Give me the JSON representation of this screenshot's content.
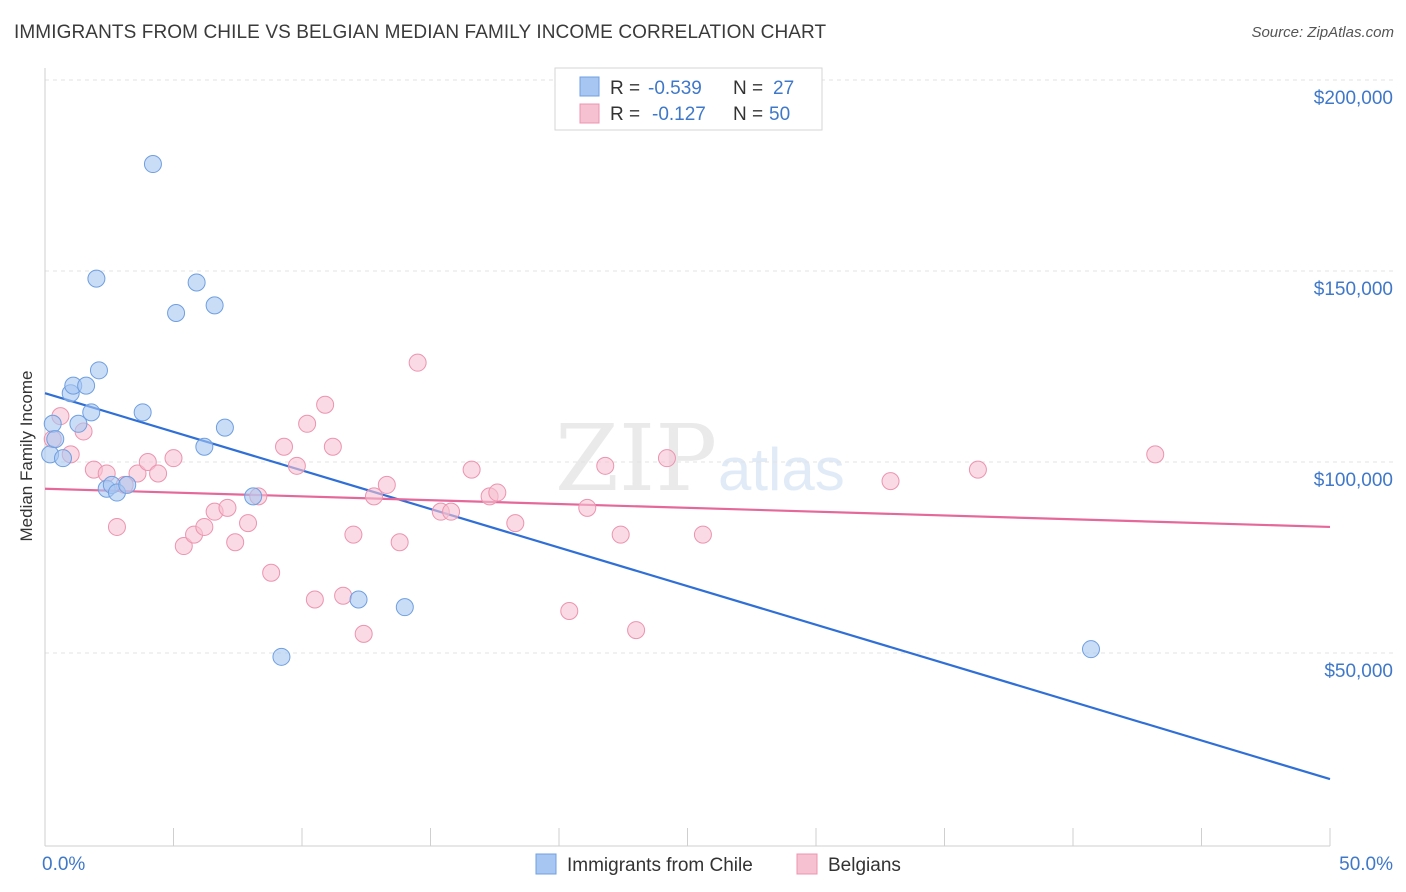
{
  "header": {
    "title": "IMMIGRANTS FROM CHILE VS BELGIAN MEDIAN FAMILY INCOME CORRELATION CHART",
    "source": "Source: ZipAtlas.com"
  },
  "watermark": {
    "zip": "ZIP",
    "atlas": "atlas"
  },
  "legend": {
    "rows": [
      {
        "r_label": "R =",
        "r_value": "-0.539",
        "n_label": "N =",
        "n_value": "27"
      },
      {
        "r_label": "R =",
        "r_value": "-0.127",
        "n_label": "N =",
        "n_value": "50"
      }
    ]
  },
  "chart_data": {
    "type": "scatter",
    "title": "IMMIGRANTS FROM CHILE VS BELGIAN MEDIAN FAMILY INCOME CORRELATION CHART",
    "xlabel": "",
    "ylabel": "Median Family Income",
    "xlim": [
      0,
      50
    ],
    "ylim": [
      10000,
      210000
    ],
    "x_tick_labels": [
      "0.0%",
      "50.0%"
    ],
    "y_ticks": [
      50000,
      100000,
      150000,
      200000
    ],
    "y_tick_labels": [
      "$50,000",
      "$100,000",
      "$150,000",
      "$200,000"
    ],
    "grid": true,
    "legend_position": "top-center",
    "series": [
      {
        "name": "Immigrants from Chile",
        "color": "#a7c7f2",
        "stroke": "#6f9fe0",
        "line_color": "#2f6fd6",
        "trend": {
          "x": [
            0,
            50
          ],
          "y": [
            118000,
            17000
          ]
        },
        "points": [
          [
            0.2,
            102000
          ],
          [
            0.3,
            110000
          ],
          [
            0.4,
            106000
          ],
          [
            0.7,
            101000
          ],
          [
            1.0,
            118000
          ],
          [
            1.1,
            120000
          ],
          [
            1.3,
            110000
          ],
          [
            1.6,
            120000
          ],
          [
            1.8,
            113000
          ],
          [
            2.0,
            148000
          ],
          [
            2.1,
            124000
          ],
          [
            2.4,
            93000
          ],
          [
            2.6,
            94000
          ],
          [
            2.8,
            92000
          ],
          [
            3.2,
            94000
          ],
          [
            3.8,
            113000
          ],
          [
            4.2,
            178000
          ],
          [
            5.1,
            139000
          ],
          [
            5.9,
            147000
          ],
          [
            6.2,
            104000
          ],
          [
            6.6,
            141000
          ],
          [
            7.0,
            109000
          ],
          [
            8.1,
            91000
          ],
          [
            9.2,
            49000
          ],
          [
            12.2,
            64000
          ],
          [
            14.0,
            62000
          ],
          [
            40.7,
            51000
          ]
        ]
      },
      {
        "name": "Belgians",
        "color": "#f6c2d2",
        "stroke": "#ec94b0",
        "line_color": "#e5689a",
        "trend": {
          "x": [
            0,
            50
          ],
          "y": [
            93000,
            83000
          ]
        },
        "points": [
          [
            0.3,
            106000
          ],
          [
            0.6,
            112000
          ],
          [
            1.0,
            102000
          ],
          [
            1.5,
            108000
          ],
          [
            1.9,
            98000
          ],
          [
            2.4,
            97000
          ],
          [
            2.8,
            83000
          ],
          [
            3.1,
            94000
          ],
          [
            3.6,
            97000
          ],
          [
            4.0,
            100000
          ],
          [
            4.4,
            97000
          ],
          [
            5.0,
            101000
          ],
          [
            5.4,
            78000
          ],
          [
            5.8,
            81000
          ],
          [
            6.2,
            83000
          ],
          [
            6.6,
            87000
          ],
          [
            7.1,
            88000
          ],
          [
            7.4,
            79000
          ],
          [
            7.9,
            84000
          ],
          [
            8.3,
            91000
          ],
          [
            8.8,
            71000
          ],
          [
            9.3,
            104000
          ],
          [
            9.8,
            99000
          ],
          [
            10.2,
            110000
          ],
          [
            10.5,
            64000
          ],
          [
            10.9,
            115000
          ],
          [
            11.2,
            104000
          ],
          [
            11.6,
            65000
          ],
          [
            12.0,
            81000
          ],
          [
            12.4,
            55000
          ],
          [
            12.8,
            91000
          ],
          [
            13.3,
            94000
          ],
          [
            13.8,
            79000
          ],
          [
            14.5,
            126000
          ],
          [
            15.4,
            87000
          ],
          [
            15.8,
            87000
          ],
          [
            16.6,
            98000
          ],
          [
            17.3,
            91000
          ],
          [
            17.6,
            92000
          ],
          [
            18.3,
            84000
          ],
          [
            20.4,
            61000
          ],
          [
            21.1,
            88000
          ],
          [
            21.8,
            99000
          ],
          [
            22.4,
            81000
          ],
          [
            23.0,
            56000
          ],
          [
            24.2,
            101000
          ],
          [
            25.6,
            81000
          ],
          [
            32.9,
            95000
          ],
          [
            36.3,
            98000
          ],
          [
            43.2,
            102000
          ]
        ]
      }
    ]
  }
}
